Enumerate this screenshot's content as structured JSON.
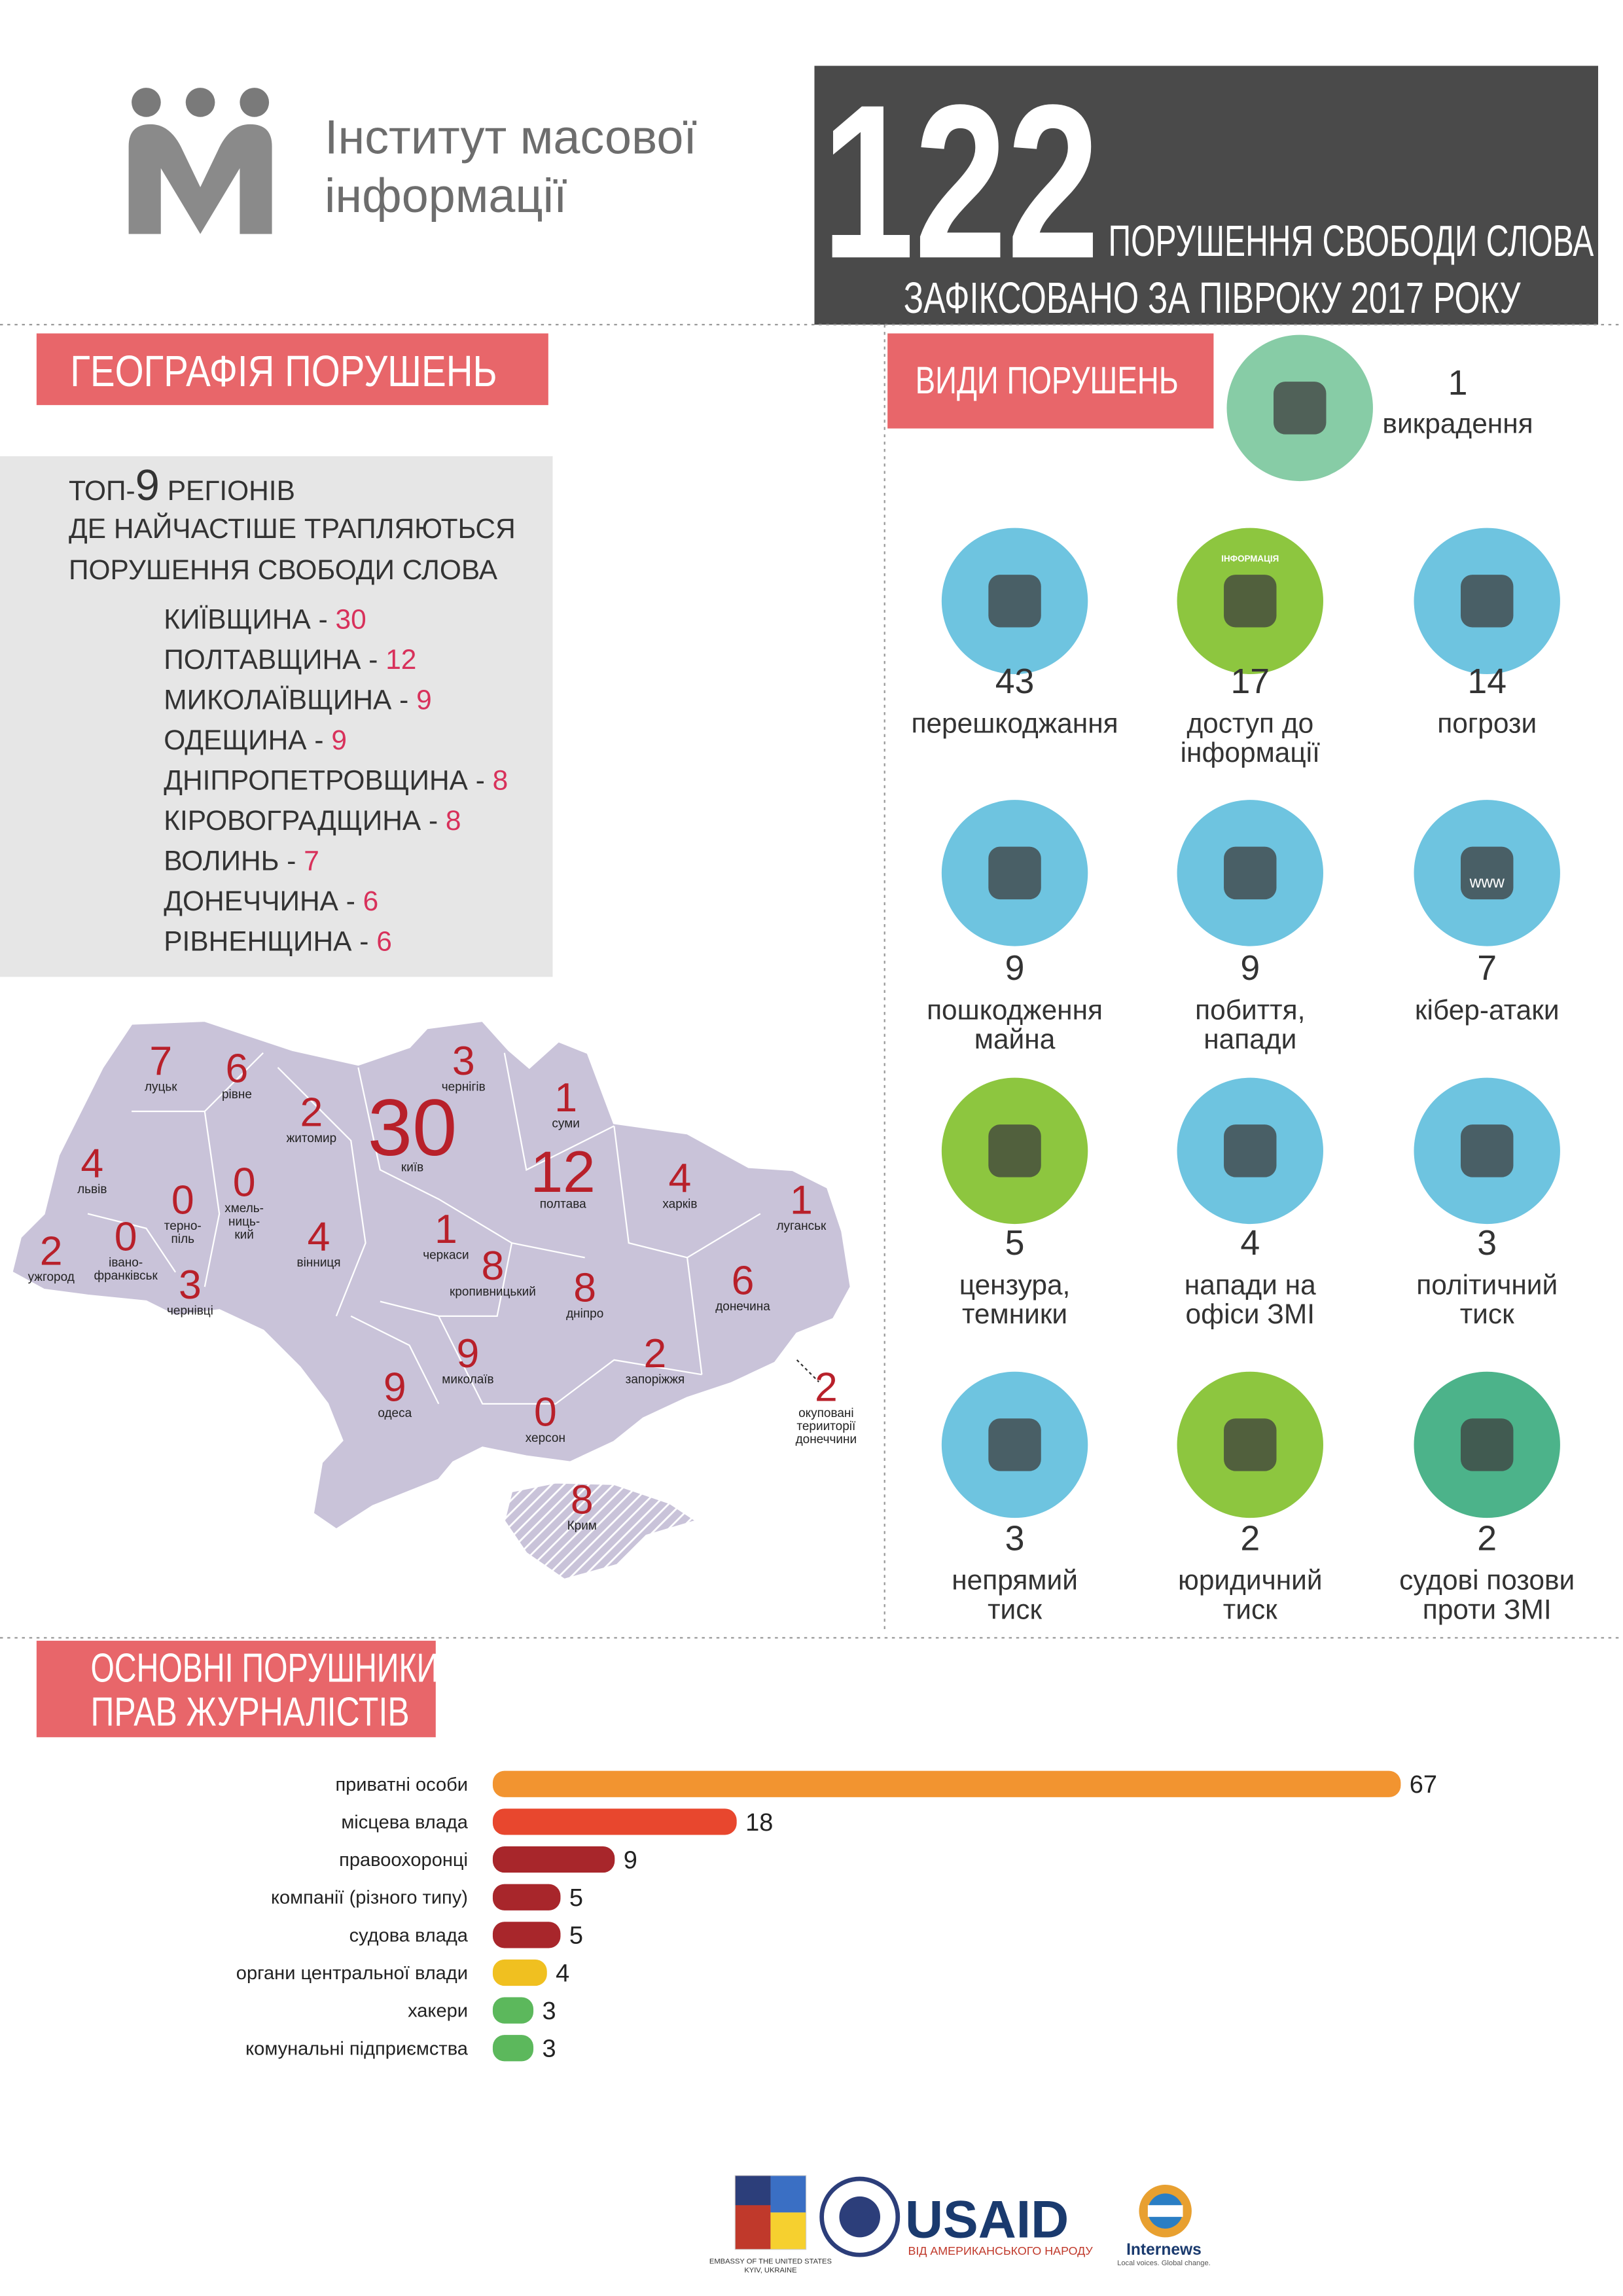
{
  "header": {
    "logo_lines": [
      "Інститут масової",
      "інформації"
    ],
    "big_number": "122",
    "line1": "ПОРУШЕННЯ СВОБОДИ СЛОВА",
    "line2": "ЗАФІКСОВАНО ЗА ПІВРОКУ 2017 РОКУ"
  },
  "geography": {
    "title": "ГЕОГРАФІЯ ПОРУШЕНЬ",
    "top_prefix": "ТОП-",
    "top_number": "9",
    "top_suffix": " РЕГІОНІВ",
    "line2": "ДЕ  НАЙЧАСТІШЕ ТРАПЛЯЮТЬСЯ",
    "line3": "ПОРУШЕННЯ СВОБОДИ СЛОВА",
    "separator": " - ",
    "regions": [
      {
        "name": "КИЇВЩИНА",
        "value": 30
      },
      {
        "name": "ПОЛТАВЩИНА",
        "value": 12
      },
      {
        "name": "МИКОЛАЇВЩИНА",
        "value": 9
      },
      {
        "name": "ОДЕЩИНА",
        "value": 9
      },
      {
        "name": "ДНІПРОПЕТРОВЩИНА",
        "value": 8
      },
      {
        "name": "КІРОВОГРАДЩИНА",
        "value": 8
      },
      {
        "name": "ВОЛИНЬ",
        "value": 7
      },
      {
        "name": "ДОНЕЧЧИНА",
        "value": 6
      },
      {
        "name": "РІВНЕНЩИНА",
        "value": 6
      }
    ]
  },
  "map": {
    "regions": [
      {
        "label_lines": [
          "луцьк"
        ],
        "value": 7
      },
      {
        "label_lines": [
          "рівне"
        ],
        "value": 6
      },
      {
        "label_lines": [
          "житомир"
        ],
        "value": 2
      },
      {
        "label_lines": [
          "чернігів"
        ],
        "value": 3
      },
      {
        "label_lines": [
          "суми"
        ],
        "value": 1
      },
      {
        "label_lines": [
          "київ"
        ],
        "value": 30
      },
      {
        "label_lines": [
          "львів"
        ],
        "value": 4
      },
      {
        "label_lines": [
          "терно-",
          "піль"
        ],
        "value": 0
      },
      {
        "label_lines": [
          "хмель-",
          "ниць-",
          "кий"
        ],
        "value": 0
      },
      {
        "label_lines": [
          "вінниця"
        ],
        "value": 4
      },
      {
        "label_lines": [
          "черкаси"
        ],
        "value": 1
      },
      {
        "label_lines": [
          "полтава"
        ],
        "value": 12
      },
      {
        "label_lines": [
          "харків"
        ],
        "value": 4
      },
      {
        "label_lines": [
          "луганськ"
        ],
        "value": 1
      },
      {
        "label_lines": [
          "ужгород"
        ],
        "value": 2
      },
      {
        "label_lines": [
          "івано-",
          "франківськ"
        ],
        "value": 0
      },
      {
        "label_lines": [
          "чернівці"
        ],
        "value": 3
      },
      {
        "label_lines": [
          "кропивницький"
        ],
        "value": 8
      },
      {
        "label_lines": [
          "дніпро"
        ],
        "value": 8
      },
      {
        "label_lines": [
          "донечина"
        ],
        "value": 6
      },
      {
        "label_lines": [
          "запоріжжя"
        ],
        "value": 2
      },
      {
        "label_lines": [
          "миколаїв"
        ],
        "value": 9
      },
      {
        "label_lines": [
          "одеса"
        ],
        "value": 9
      },
      {
        "label_lines": [
          "херсон"
        ],
        "value": 0
      },
      {
        "label_lines": [
          "окуповані",
          "терииторії",
          "донеччини"
        ],
        "value": 2
      },
      {
        "label_lines": [
          "Крим"
        ],
        "value": 8
      }
    ]
  },
  "types": {
    "title": "ВИДИ ПОРУШЕНЬ",
    "icon_texts": [
      "ІНФОРМАЦІЯ",
      "www"
    ],
    "items": [
      {
        "value": 1,
        "label_lines": [
          "викрадення"
        ]
      },
      {
        "value": 43,
        "label_lines": [
          "перешкоджання"
        ]
      },
      {
        "value": 17,
        "label_lines": [
          "доступ до",
          "інформації"
        ]
      },
      {
        "value": 14,
        "label_lines": [
          "погрози"
        ]
      },
      {
        "value": 9,
        "label_lines": [
          "пошкодження",
          "майна"
        ]
      },
      {
        "value": 9,
        "label_lines": [
          "побиття,",
          "напади"
        ]
      },
      {
        "value": 7,
        "label_lines": [
          "кібер-атаки"
        ]
      },
      {
        "value": 5,
        "label_lines": [
          "цензура,",
          "темники"
        ]
      },
      {
        "value": 4,
        "label_lines": [
          "напади на",
          "офіси ЗМІ"
        ]
      },
      {
        "value": 3,
        "label_lines": [
          "політичний",
          "тиск"
        ]
      },
      {
        "value": 3,
        "label_lines": [
          "непрямий",
          "тиск"
        ]
      },
      {
        "value": 2,
        "label_lines": [
          "юридичний",
          "тиск"
        ]
      },
      {
        "value": 2,
        "label_lines": [
          "судові позови",
          "проти ЗМІ"
        ]
      }
    ]
  },
  "violators": {
    "type": "bar",
    "title_lines": [
      "ОСНОВНІ ПОРУШНИКИ",
      "ПРАВ ЖУРНАЛІСТІВ"
    ],
    "categories": [
      "приватні особи",
      "місцева влада",
      "правоохоронці",
      "компанії (різного типу)",
      "судова влада",
      "органи центральної влади",
      "хакери",
      "комунальні підприємства"
    ],
    "values": [
      67,
      18,
      9,
      5,
      5,
      4,
      3,
      3
    ],
    "colors": [
      "#f29430",
      "#e8472e",
      "#a8262b",
      "#a8262b",
      "#a8262b",
      "#f0c020",
      "#5cb85c",
      "#5cb85c"
    ]
  },
  "footer": {
    "embassy_lines": [
      "EMBASSY OF THE UNITED STATES",
      "KYIV, UKRAINE"
    ],
    "usaid": "USAID",
    "usaid_tagline": "ВІД АМЕРИКАНСЬКОГО НАРОДУ",
    "internews": "Internews",
    "internews_tagline": "Local voices. Global change."
  }
}
